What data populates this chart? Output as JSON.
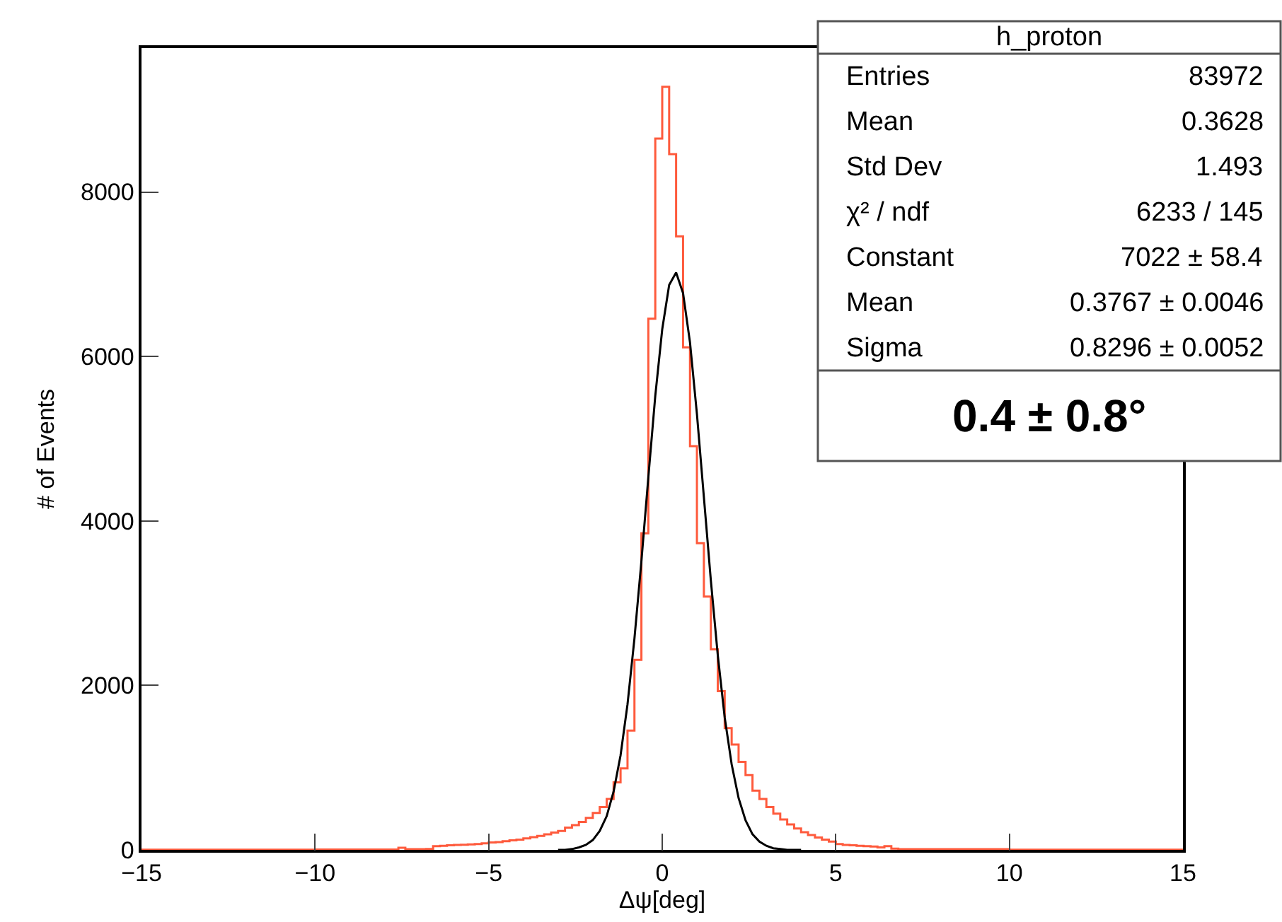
{
  "chart_data": {
    "type": "histogram",
    "xlabel": "Δψ[deg]",
    "ylabel": "# of Events",
    "bins": [
      -15.0,
      -14.8,
      -14.6,
      -14.4,
      -14.2,
      -14.0,
      -13.8,
      -13.6,
      -13.4,
      -13.2,
      -13.0,
      -12.8,
      -12.6,
      -12.4,
      -12.2,
      -12.0,
      -11.8,
      -11.6,
      -11.4,
      -11.2,
      -11.0,
      -10.8,
      -10.6,
      -10.4,
      -10.2,
      -10.0,
      -9.8,
      -9.6,
      -9.4,
      -9.2,
      -9.0,
      -8.8,
      -8.6,
      -8.4,
      -8.2,
      -8.0,
      -7.8,
      -7.6,
      -7.4,
      -7.2,
      -7.0,
      -6.8,
      -6.6,
      -6.4,
      -6.2,
      -6.0,
      -5.8,
      -5.6,
      -5.4,
      -5.2,
      -5.0,
      -4.8,
      -4.6,
      -4.4,
      -4.2,
      -4.0,
      -3.8,
      -3.6,
      -3.4,
      -3.2,
      -3.0,
      -2.8,
      -2.6,
      -2.4,
      -2.2,
      -2.0,
      -1.8,
      -1.6,
      -1.4,
      -1.2,
      -1.0,
      -0.8,
      -0.6,
      -0.4,
      -0.2,
      0.0,
      0.2,
      0.4,
      0.6,
      0.8,
      1.0,
      1.2,
      1.4,
      1.6,
      1.8,
      2.0,
      2.2,
      2.4,
      2.6,
      2.8,
      3.0,
      3.2,
      3.4,
      3.6,
      3.8,
      4.0,
      4.2,
      4.4,
      4.6,
      4.8,
      5.0,
      5.2,
      5.4,
      5.6,
      5.8,
      6.0,
      6.2,
      6.4,
      6.6,
      6.8,
      7.0,
      7.2,
      7.4,
      7.6,
      7.8,
      8.0,
      8.2,
      8.4,
      8.6,
      8.8,
      9.0,
      9.2,
      9.4,
      9.6,
      9.8,
      10.0,
      10.2,
      10.4,
      10.6,
      10.8,
      11.0,
      11.2,
      11.4,
      11.6,
      11.8,
      12.0,
      12.2,
      12.4,
      12.6,
      12.8,
      13.0,
      13.2,
      13.4,
      13.6,
      13.8,
      14.0,
      14.2,
      14.4,
      14.6,
      14.8,
      15.0
    ],
    "values": [
      3,
      3,
      3,
      3,
      3,
      3,
      3,
      3,
      3,
      3,
      3,
      3,
      3,
      3,
      3,
      3,
      3,
      3,
      3,
      3,
      3,
      3,
      3,
      3,
      3,
      5,
      5,
      5,
      5,
      5,
      5,
      5,
      5,
      5,
      5,
      5,
      5,
      25,
      8,
      8,
      8,
      10,
      45,
      50,
      55,
      60,
      62,
      66,
      70,
      80,
      90,
      95,
      105,
      115,
      125,
      140,
      155,
      170,
      190,
      210,
      230,
      270,
      300,
      340,
      390,
      450,
      520,
      620,
      820,
      990,
      1450,
      2310,
      3850,
      6460,
      8650,
      9280,
      8460,
      7460,
      6110,
      4910,
      3730,
      3080,
      2440,
      1930,
      1480,
      1280,
      1070,
      910,
      720,
      620,
      520,
      440,
      370,
      310,
      260,
      215,
      180,
      150,
      125,
      100,
      70,
      60,
      55,
      50,
      45,
      40,
      30,
      45,
      15,
      8,
      8,
      8,
      8,
      8,
      8,
      8,
      8,
      8,
      8,
      8,
      8,
      8,
      8,
      8,
      8,
      3,
      3,
      3,
      3,
      3,
      3,
      3,
      3,
      3,
      3,
      3,
      3,
      3,
      3,
      3,
      3,
      3,
      3,
      3,
      3,
      3,
      3,
      3,
      3,
      3
    ],
    "color": "#fe5a3c",
    "series": [
      {
        "type": "line",
        "color": "#000000",
        "x": [
          -3.0,
          -2.8,
          -2.6,
          -2.4,
          -2.2,
          -2.0,
          -1.8,
          -1.6,
          -1.4,
          -1.2,
          -1.0,
          -0.8,
          -0.6,
          -0.4,
          -0.2,
          0.0,
          0.2,
          0.4,
          0.6,
          0.8,
          1.0,
          1.2,
          1.4,
          1.6,
          1.8,
          2.0,
          2.2,
          2.4,
          2.6,
          2.8,
          3.0,
          3.2,
          3.4,
          3.6,
          3.8,
          4.0
        ],
        "values": [
          0,
          0,
          10,
          30,
          60,
          120,
          230,
          410,
          710,
          1150,
          1770,
          2570,
          3510,
          4530,
          5520,
          6330,
          6870,
          7020,
          6770,
          6170,
          5300,
          4290,
          3280,
          2370,
          1610,
          1040,
          630,
          360,
          190,
          100,
          50,
          20,
          10,
          0,
          0,
          0
        ]
      }
    ],
    "xlim": [
      -15,
      15
    ],
    "xticks": [
      {
        "value": -15,
        "label": "−15"
      },
      {
        "value": -10,
        "label": "−10"
      },
      {
        "value": -5,
        "label": "−5"
      },
      0,
      5,
      10,
      15
    ],
    "ylim": [
      0,
      9750
    ],
    "yticks": [
      0,
      2000,
      4000,
      6000,
      8000
    ],
    "annotations": [
      "h_proton",
      "Entries",
      "83972",
      "Mean",
      "0.3628",
      "Std Dev",
      "1.493",
      "χ² / ndf",
      "6233 / 145",
      "Constant",
      "7022 ± 58.4",
      "Mean",
      "0.3767 ± 0.0046",
      "Sigma",
      "0.8296 ± 0.0052",
      "0.4 ± 0.8°"
    ]
  }
}
